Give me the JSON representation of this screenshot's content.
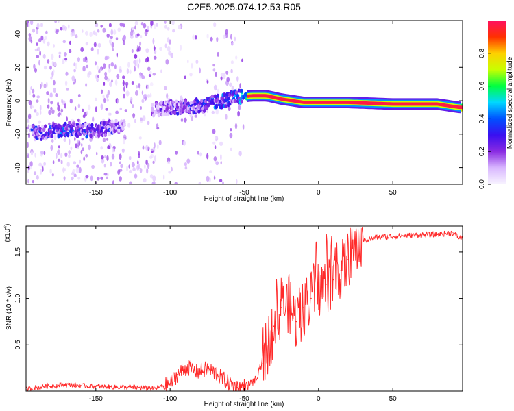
{
  "chart_data": [
    {
      "type": "heatmap",
      "title": "C2E5.2025.074.12.53.R05",
      "xlabel": "Height of straight line (km)",
      "ylabel": "Frequency (Hz)",
      "xlim": [
        -197,
        97
      ],
      "ylim": [
        -50,
        48
      ],
      "x_ticks": [
        -150,
        -100,
        -50,
        0,
        50
      ],
      "y_ticks": [
        -40,
        -20,
        0,
        20,
        40
      ],
      "colorbar": {
        "label": "Normalized spectral amplitude",
        "range": [
          0,
          1
        ],
        "ticks": [
          "0.0",
          "0.2",
          "0.4",
          "0.6",
          "0.8"
        ],
        "colors": [
          "#f8f4ff",
          "#d9b8ff",
          "#8a2be2",
          "#3a0ff0",
          "#0050ff",
          "#00d8ff",
          "#00ff40",
          "#c8ff00",
          "#ffd000",
          "#ff3000",
          "#ff1060"
        ]
      },
      "ridge_frequency": [
        {
          "x": -185,
          "f": -19
        },
        {
          "x": -170,
          "f": -17
        },
        {
          "x": -150,
          "f": -18
        },
        {
          "x": -135,
          "f": -15
        },
        {
          "x": -110,
          "f": -5
        },
        {
          "x": -100,
          "f": -4
        },
        {
          "x": -80,
          "f": -3
        },
        {
          "x": -65,
          "f": 0
        },
        {
          "x": -55,
          "f": 2
        },
        {
          "x": -45,
          "f": 3
        },
        {
          "x": -35,
          "f": 3
        },
        {
          "x": -25,
          "f": 1
        },
        {
          "x": -10,
          "f": -1
        },
        {
          "x": 0,
          "f": -1
        },
        {
          "x": 20,
          "f": -1
        },
        {
          "x": 50,
          "f": -2
        },
        {
          "x": 80,
          "f": -2
        },
        {
          "x": 95,
          "f": -4
        }
      ],
      "ridge_amplitude": [
        {
          "x": -185,
          "a": 0.35
        },
        {
          "x": -170,
          "a": 0.45
        },
        {
          "x": -150,
          "a": 0.35
        },
        {
          "x": -135,
          "a": 0.3
        },
        {
          "x": -110,
          "a": 0.25
        },
        {
          "x": -100,
          "a": 0.3
        },
        {
          "x": -80,
          "a": 0.42
        },
        {
          "x": -65,
          "a": 0.45
        },
        {
          "x": -55,
          "a": 0.5
        },
        {
          "x": -45,
          "a": 0.75
        },
        {
          "x": -35,
          "a": 0.85
        },
        {
          "x": -25,
          "a": 0.9
        },
        {
          "x": -10,
          "a": 0.9
        },
        {
          "x": 0,
          "a": 0.9
        },
        {
          "x": 20,
          "a": 0.95
        },
        {
          "x": 50,
          "a": 1.0
        },
        {
          "x": 80,
          "a": 1.0
        },
        {
          "x": 95,
          "a": 0.95
        }
      ]
    },
    {
      "type": "line",
      "xlabel": "Height of straight line (km)",
      "ylabel": "SNR (10 * v/v)",
      "scale_label": "(x10",
      "scale_exponent": "4",
      "scale_suffix": ")",
      "xlim": [
        -197,
        97
      ],
      "ylim": [
        0,
        1.78
      ],
      "x_ticks": [
        -150,
        -100,
        0,
        50
      ],
      "x_tick_partial": "-50",
      "y_ticks": [
        "0.5",
        "1.0",
        "1.5"
      ],
      "series": [
        {
          "name": "SNR",
          "color": "#ff2a2a",
          "points": [
            {
              "x": -197,
              "y": 0.02
            },
            {
              "x": -185,
              "y": 0.05
            },
            {
              "x": -170,
              "y": 0.07
            },
            {
              "x": -150,
              "y": 0.05
            },
            {
              "x": -130,
              "y": 0.04
            },
            {
              "x": -110,
              "y": 0.03
            },
            {
              "x": -100,
              "y": 0.08
            },
            {
              "x": -95,
              "y": 0.18
            },
            {
              "x": -88,
              "y": 0.26
            },
            {
              "x": -82,
              "y": 0.2
            },
            {
              "x": -75,
              "y": 0.24
            },
            {
              "x": -68,
              "y": 0.18
            },
            {
              "x": -62,
              "y": 0.1
            },
            {
              "x": -55,
              "y": 0.04
            },
            {
              "x": -48,
              "y": 0.06
            },
            {
              "x": -42,
              "y": 0.12
            },
            {
              "x": -38,
              "y": 0.3
            },
            {
              "x": -35,
              "y": 0.45
            },
            {
              "x": -30,
              "y": 0.7
            },
            {
              "x": -25,
              "y": 0.9
            },
            {
              "x": -20,
              "y": 0.95
            },
            {
              "x": -15,
              "y": 0.75
            },
            {
              "x": -10,
              "y": 0.9
            },
            {
              "x": -5,
              "y": 1.0
            },
            {
              "x": 0,
              "y": 1.1
            },
            {
              "x": 5,
              "y": 1.15
            },
            {
              "x": 10,
              "y": 1.2
            },
            {
              "x": 15,
              "y": 1.3
            },
            {
              "x": 20,
              "y": 1.42
            },
            {
              "x": 25,
              "y": 1.55
            },
            {
              "x": 30,
              "y": 1.62
            },
            {
              "x": 40,
              "y": 1.66
            },
            {
              "x": 60,
              "y": 1.68
            },
            {
              "x": 80,
              "y": 1.69
            },
            {
              "x": 90,
              "y": 1.71
            },
            {
              "x": 95,
              "y": 1.65
            }
          ]
        }
      ]
    }
  ]
}
